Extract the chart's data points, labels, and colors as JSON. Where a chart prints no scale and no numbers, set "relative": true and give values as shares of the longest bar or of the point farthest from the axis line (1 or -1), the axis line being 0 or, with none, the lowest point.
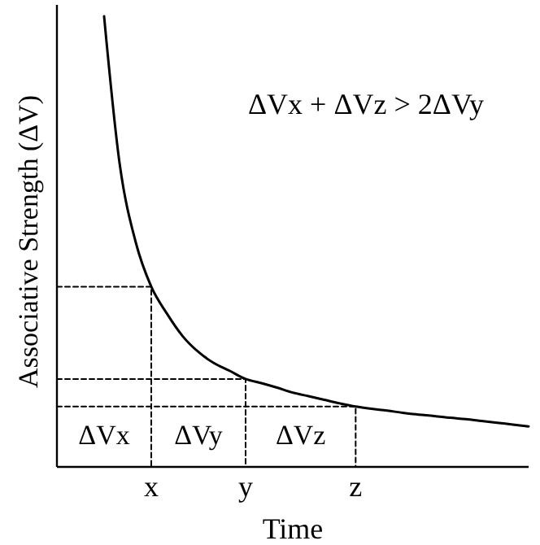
{
  "chart_data": {
    "type": "line",
    "relative": true,
    "xlabel": "Time",
    "ylabel": "Associative Strength (ΔV)",
    "categories": [
      null,
      null,
      null,
      null,
      null,
      null,
      "x",
      null,
      null,
      null,
      null,
      null,
      "y",
      null,
      null,
      null,
      null,
      null,
      null,
      "z",
      null,
      null,
      null,
      null,
      null,
      null,
      null,
      null,
      null,
      null,
      null
    ],
    "series": [
      {
        "color": "#000000",
        "line_style": "solid",
        "values": [
          null,
          null,
          null,
          1,
          0.67,
          0.5,
          0.4,
          0.34,
          0.29,
          0.255,
          0.23,
          0.213,
          0.195,
          0.186,
          0.176,
          0.165,
          0.157,
          0.149,
          0.141,
          0.134,
          0.129,
          0.125,
          0.12,
          0.116,
          0.113,
          0.109,
          0.106,
          0.102,
          0.098,
          0.094,
          0.09
        ]
      },
      {
        "type": "step",
        "color": "#000000",
        "line_style": "dashed",
        "values": [
          0.4,
          0.4,
          0.4,
          0.4,
          0.4,
          0.4,
          0.4,
          0,
          null,
          null,
          null,
          null,
          null,
          null,
          null,
          null,
          null,
          null,
          null,
          null,
          null,
          null,
          null,
          null,
          null,
          null,
          null,
          null,
          null,
          null,
          null
        ]
      },
      {
        "type": "step",
        "color": "#000000",
        "line_style": "dashed",
        "values": [
          0.195,
          0.195,
          0.195,
          0.195,
          0.195,
          0.195,
          0.195,
          0.195,
          0.195,
          0.195,
          0.195,
          0.195,
          0.195,
          0,
          null,
          null,
          null,
          null,
          null,
          null,
          null,
          null,
          null,
          null,
          null,
          null,
          null,
          null,
          null,
          null,
          null
        ]
      },
      {
        "type": "step",
        "color": "#000000",
        "line_style": "dashed",
        "values": [
          0.134,
          0.134,
          0.134,
          0.134,
          0.134,
          0.134,
          0.134,
          0.134,
          0.134,
          0.134,
          0.134,
          0.134,
          0.134,
          0.134,
          0.134,
          0.134,
          0.134,
          0.134,
          0.134,
          0.134,
          0,
          null,
          null,
          null,
          null,
          null,
          null,
          null,
          null,
          null,
          null
        ]
      }
    ],
    "annotations": [
      "ΔVx + ΔVz > 2ΔVy",
      "ΔVx",
      "ΔVy",
      "ΔVz"
    ]
  }
}
